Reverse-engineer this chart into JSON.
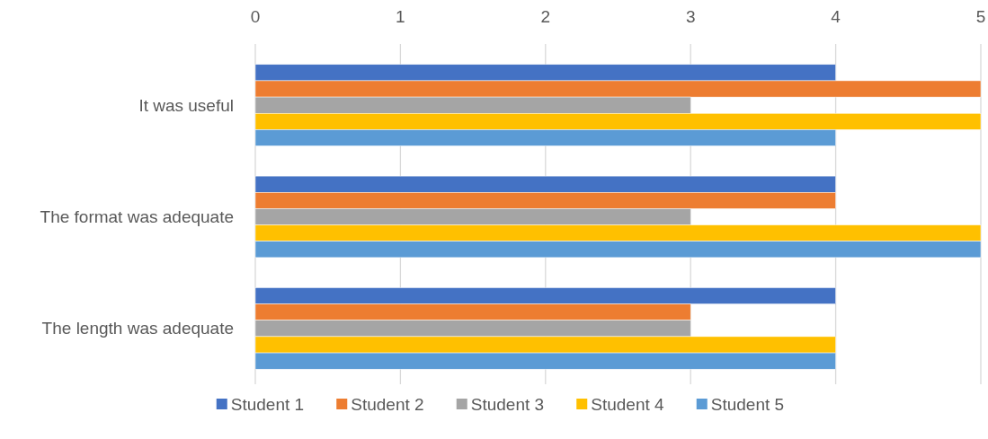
{
  "chart_data": {
    "type": "bar",
    "orientation": "horizontal",
    "categories": [
      "It was useful",
      "The format was adequate",
      "The length was adequate"
    ],
    "series": [
      {
        "name": "Student 1",
        "color": "#4472c4",
        "values": [
          4,
          4,
          4
        ]
      },
      {
        "name": "Student 2",
        "color": "#ed7d31",
        "values": [
          5,
          4,
          3
        ]
      },
      {
        "name": "Student 3",
        "color": "#a5a5a5",
        "values": [
          3,
          3,
          3
        ]
      },
      {
        "name": "Student 4",
        "color": "#ffc000",
        "values": [
          5,
          5,
          4
        ]
      },
      {
        "name": "Student 5",
        "color": "#5b9bd5",
        "values": [
          4,
          5,
          4
        ]
      }
    ],
    "xlim": [
      0,
      5
    ],
    "xticks": [
      0,
      1,
      2,
      3,
      4,
      5
    ],
    "grid": "x",
    "legend": "bottom"
  }
}
